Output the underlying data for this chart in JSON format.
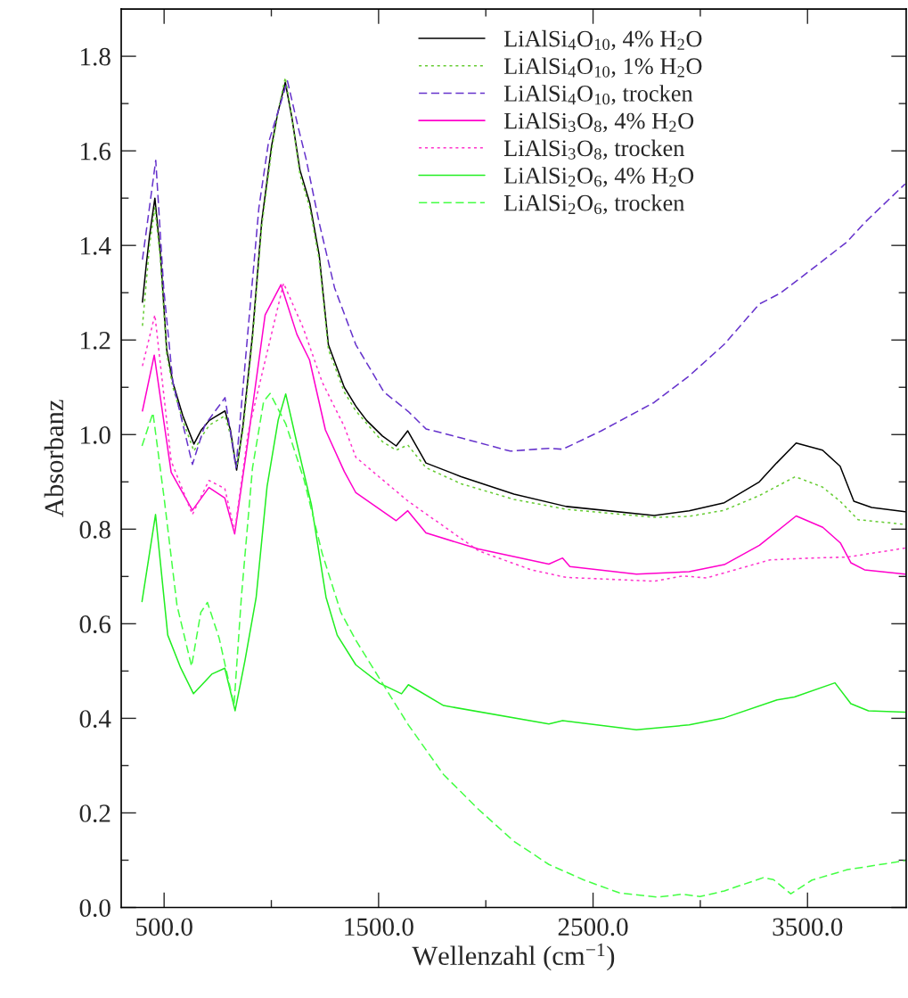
{
  "chart_data": {
    "type": "line",
    "xlabel": "Wellenzahl (cm$^{−1}$)",
    "ylabel": "Absorbanz",
    "xlim": [
      300,
      3960
    ],
    "ylim": [
      0,
      1.9
    ],
    "xticks": [
      {
        "value": 500,
        "label": "500.0"
      },
      {
        "value": 1000,
        "label": null
      },
      {
        "value": 1500,
        "label": "1500.0"
      },
      {
        "value": 2000,
        "label": null
      },
      {
        "value": 2500,
        "label": "2500.0"
      },
      {
        "value": 3000,
        "label": null
      },
      {
        "value": 3500,
        "label": "3500.0"
      }
    ],
    "yticks": [
      {
        "value": 0,
        "label": "0.0"
      },
      {
        "value": 0.1,
        "label": null
      },
      {
        "value": 0.2,
        "label": "0.2"
      },
      {
        "value": 0.3,
        "label": null
      },
      {
        "value": 0.4,
        "label": "0.4"
      },
      {
        "value": 0.5,
        "label": null
      },
      {
        "value": 0.6,
        "label": "0.6"
      },
      {
        "value": 0.7,
        "label": null
      },
      {
        "value": 0.8,
        "label": "0.8"
      },
      {
        "value": 0.9,
        "label": null
      },
      {
        "value": 1.0,
        "label": "1.0"
      },
      {
        "value": 1.1,
        "label": null
      },
      {
        "value": 1.2,
        "label": "1.2"
      },
      {
        "value": 1.3,
        "label": null
      },
      {
        "value": 1.4,
        "label": "1.4"
      },
      {
        "value": 1.5,
        "label": null
      },
      {
        "value": 1.6,
        "label": "1.6"
      },
      {
        "value": 1.7,
        "label": null
      },
      {
        "value": 1.8,
        "label": "1.8"
      }
    ],
    "grid": false,
    "legend": "top",
    "marker": "none",
    "series": [
      {
        "name": "LiAlSi$_{4}$O$_{10}$, 4% H$_{2}$O",
        "color": "#000000",
        "line_style": "solid",
        "x": [
          399,
          417,
          432,
          457,
          483,
          512,
          541,
          587,
          639,
          674,
          711,
          736,
          784,
          809,
          838,
          868,
          912,
          955,
          1001,
          1030,
          1065,
          1096,
          1133,
          1179,
          1223,
          1266,
          1340,
          1394,
          1444,
          1518,
          1582,
          1636,
          1721,
          1885,
          2131,
          2375,
          2785,
          2948,
          3112,
          3275,
          3356,
          3447,
          3570,
          3652,
          3716,
          3799,
          3955
        ],
        "values": [
          1.28,
          1.36,
          1.42,
          1.5,
          1.38,
          1.18,
          1.11,
          1.04,
          0.98,
          1.01,
          1.03,
          1.037,
          1.05,
          1.01,
          0.925,
          1.02,
          1.21,
          1.45,
          1.61,
          1.68,
          1.745,
          1.67,
          1.56,
          1.49,
          1.38,
          1.19,
          1.1,
          1.06,
          1.03,
          0.997,
          0.976,
          1.008,
          0.94,
          0.911,
          0.874,
          0.848,
          0.829,
          0.839,
          0.856,
          0.9,
          0.94,
          0.982,
          0.967,
          0.933,
          0.859,
          0.846,
          0.837
        ]
      },
      {
        "name": "LiAlSi$_{4}$O$_{10}$, 1% H$_{2}$O",
        "color": "#66cc33",
        "line_style": "dotted",
        "x": [
          399,
          432,
          457,
          483,
          512,
          541,
          587,
          639,
          674,
          711,
          784,
          809,
          838,
          868,
          912,
          955,
          1001,
          1030,
          1065,
          1096,
          1133,
          1179,
          1223,
          1266,
          1340,
          1394,
          1518,
          1582,
          1636,
          1721,
          1885,
          2131,
          2375,
          2785,
          2948,
          3112,
          3275,
          3443,
          3570,
          3652,
          3736,
          3955
        ],
        "values": [
          1.23,
          1.4,
          1.48,
          1.37,
          1.17,
          1.1,
          1.03,
          0.965,
          0.995,
          1.02,
          1.04,
          1.0,
          0.93,
          1.01,
          1.2,
          1.44,
          1.6,
          1.68,
          1.755,
          1.67,
          1.55,
          1.48,
          1.37,
          1.18,
          1.09,
          1.05,
          0.985,
          0.967,
          0.978,
          0.93,
          0.896,
          0.863,
          0.842,
          0.825,
          0.827,
          0.84,
          0.871,
          0.911,
          0.889,
          0.859,
          0.82,
          0.81
        ]
      },
      {
        "name": "LiAlSi$_{4}$O$_{10}$, trocken",
        "color": "#6633cc",
        "line_style": "dashed",
        "x": [
          399,
          461,
          498,
          541,
          632,
          690,
          784,
          835,
          897,
          942,
          986,
          1075,
          1125,
          1162,
          1223,
          1295,
          1394,
          1525,
          1638,
          1721,
          1885,
          2114,
          2294,
          2358,
          2539,
          2785,
          2948,
          3112,
          3275,
          3373,
          3521,
          3683,
          3766,
          3955
        ],
        "values": [
          1.37,
          1.58,
          1.31,
          1.11,
          0.937,
          1.02,
          1.078,
          0.93,
          1.25,
          1.48,
          1.616,
          1.748,
          1.65,
          1.583,
          1.448,
          1.31,
          1.19,
          1.09,
          1.049,
          1.012,
          0.993,
          0.965,
          0.971,
          0.969,
          1.008,
          1.068,
          1.124,
          1.191,
          1.276,
          1.299,
          1.35,
          1.407,
          1.448,
          1.53
        ]
      },
      {
        "name": "LiAlSi$_{3}$O$_{8}$, 4% H$_{2}$O",
        "color": "#ff00cc",
        "line_style": "solid",
        "x": [
          399,
          454,
          533,
          632,
          709,
          783,
          829,
          885,
          955,
          971,
          1045,
          1119,
          1178,
          1252,
          1340,
          1394,
          1582,
          1636,
          1721,
          1965,
          2294,
          2358,
          2392,
          2702,
          2948,
          3112,
          3276,
          3447,
          3571,
          3653,
          3702,
          3766,
          3955
        ],
        "values": [
          1.05,
          1.168,
          0.92,
          0.84,
          0.888,
          0.866,
          0.79,
          0.968,
          1.2,
          1.253,
          1.317,
          1.212,
          1.158,
          1.01,
          0.922,
          0.877,
          0.818,
          0.839,
          0.792,
          0.758,
          0.726,
          0.739,
          0.721,
          0.705,
          0.71,
          0.725,
          0.766,
          0.828,
          0.804,
          0.771,
          0.729,
          0.714,
          0.705
        ]
      },
      {
        "name": "LiAlSi$_{3}$O$_{8}$, trocken",
        "color": "#ff33cc",
        "line_style": "dotted",
        "x": [
          399,
          457,
          533,
          632,
          709,
          783,
          829,
          893,
          1057,
          1149,
          1237,
          1340,
          1394,
          1638,
          1967,
          2212,
          2375,
          2785,
          2916,
          3029,
          3325,
          3522,
          3686,
          3955
        ],
        "values": [
          1.145,
          1.253,
          0.944,
          0.831,
          0.903,
          0.886,
          0.795,
          1.007,
          1.32,
          1.225,
          1.111,
          1.017,
          0.952,
          0.859,
          0.754,
          0.714,
          0.698,
          0.69,
          0.701,
          0.697,
          0.735,
          0.739,
          0.741,
          0.76
        ]
      },
      {
        "name": "LiAlSi$_{2}$O$_{6}$, 4% H$_{2}$O",
        "color": "#22ee22",
        "line_style": "solid",
        "x": [
          397,
          460,
          517,
          577,
          637,
          724,
          783,
          831,
          877,
          929,
          980,
          1032,
          1067,
          1118,
          1187,
          1255,
          1307,
          1394,
          1505,
          1607,
          1639,
          1803,
          2294,
          2358,
          2702,
          2948,
          3112,
          3358,
          3439,
          3628,
          3702,
          3784,
          3955
        ],
        "values": [
          0.647,
          0.831,
          0.576,
          0.507,
          0.452,
          0.494,
          0.506,
          0.416,
          0.522,
          0.655,
          0.89,
          1.031,
          1.086,
          0.984,
          0.851,
          0.656,
          0.576,
          0.513,
          0.474,
          0.452,
          0.471,
          0.427,
          0.388,
          0.395,
          0.376,
          0.386,
          0.401,
          0.439,
          0.445,
          0.475,
          0.431,
          0.416,
          0.413
        ]
      },
      {
        "name": "LiAlSi$_{2}$O$_{6}$, trocken",
        "color": "#44ff44",
        "line_style": "dashed",
        "x": [
          397,
          448,
          500,
          560,
          628,
          671,
          702,
          757,
          826,
          860,
          912,
          964,
          994,
          1067,
          1152,
          1237,
          1324,
          1394,
          1558,
          1639,
          1803,
          1967,
          2131,
          2294,
          2458,
          2622,
          2801,
          2916,
          2998,
          3112,
          3293,
          3341,
          3422,
          3521,
          3686,
          3955
        ],
        "values": [
          0.976,
          1.046,
          0.866,
          0.639,
          0.51,
          0.624,
          0.645,
          0.569,
          0.428,
          0.655,
          0.929,
          1.07,
          1.087,
          1.023,
          0.905,
          0.749,
          0.624,
          0.565,
          0.445,
          0.386,
          0.281,
          0.207,
          0.14,
          0.091,
          0.058,
          0.031,
          0.022,
          0.028,
          0.023,
          0.035,
          0.063,
          0.059,
          0.029,
          0.058,
          0.08,
          0.099
        ]
      }
    ]
  }
}
